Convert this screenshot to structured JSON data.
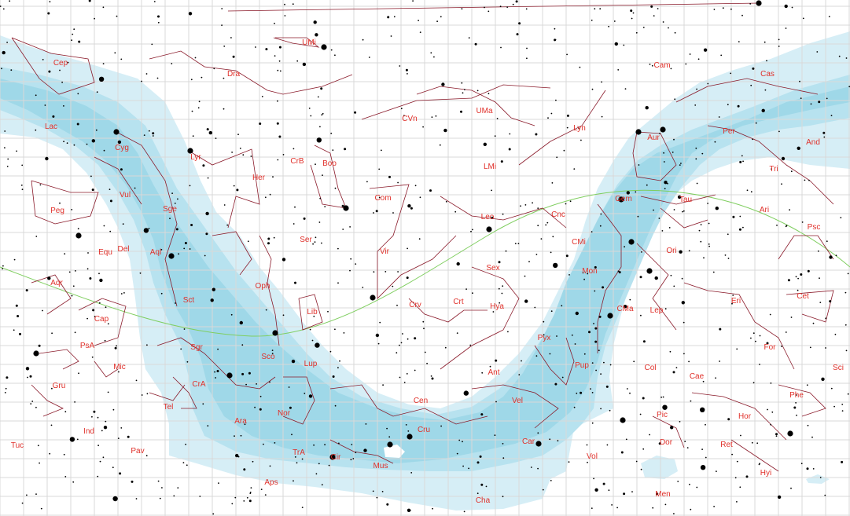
{
  "map": {
    "projection": "equirectangular sky chart",
    "colors": {
      "background": "#ffffff",
      "grid": "#d9d9d9",
      "milky_way_outer": "#d6eef6",
      "milky_way_mid": "#b7e2ef",
      "milky_way_inner": "#9fd8e8",
      "constellation_lines": "#8a1a2a",
      "labels": "#e0302a",
      "ecliptic": "#7fce5f",
      "stars": "#000000"
    },
    "constellations": [
      {
        "abbr": "UMi"
      },
      {
        "abbr": "Cep"
      },
      {
        "abbr": "Dra"
      },
      {
        "abbr": "Cam"
      },
      {
        "abbr": "Cas"
      },
      {
        "abbr": "CVn"
      },
      {
        "abbr": "UMa"
      },
      {
        "abbr": "Lac"
      },
      {
        "abbr": "Lyn"
      },
      {
        "abbr": "Per"
      },
      {
        "abbr": "Aur"
      },
      {
        "abbr": "And"
      },
      {
        "abbr": "Cyg"
      },
      {
        "abbr": "Lyr"
      },
      {
        "abbr": "CrB"
      },
      {
        "abbr": "Boo"
      },
      {
        "abbr": "LMi"
      },
      {
        "abbr": "Tri"
      },
      {
        "abbr": "Her"
      },
      {
        "abbr": "Vul"
      },
      {
        "abbr": "Peg"
      },
      {
        "abbr": "Com"
      },
      {
        "abbr": "Gem"
      },
      {
        "abbr": "Tau"
      },
      {
        "abbr": "Sge"
      },
      {
        "abbr": "Leo"
      },
      {
        "abbr": "Cnc"
      },
      {
        "abbr": "Ari"
      },
      {
        "abbr": "Ser"
      },
      {
        "abbr": "Psc"
      },
      {
        "abbr": "Equ"
      },
      {
        "abbr": "Del"
      },
      {
        "abbr": "Aql"
      },
      {
        "abbr": "CMi"
      },
      {
        "abbr": "Vir"
      },
      {
        "abbr": "Ori"
      },
      {
        "abbr": "Sex"
      },
      {
        "abbr": "Mon"
      },
      {
        "abbr": "Aqr"
      },
      {
        "abbr": "Oph"
      },
      {
        "abbr": "Sct"
      },
      {
        "abbr": "Crv"
      },
      {
        "abbr": "Crt"
      },
      {
        "abbr": "Hya"
      },
      {
        "abbr": "Eri"
      },
      {
        "abbr": "Cet"
      },
      {
        "abbr": "CMa"
      },
      {
        "abbr": "Lep"
      },
      {
        "abbr": "Cap"
      },
      {
        "abbr": "Lib"
      },
      {
        "abbr": "PsA"
      },
      {
        "abbr": "Sgr"
      },
      {
        "abbr": "Pyx"
      },
      {
        "abbr": "For"
      },
      {
        "abbr": "Sco"
      },
      {
        "abbr": "Mic"
      },
      {
        "abbr": "Lup"
      },
      {
        "abbr": "Pup"
      },
      {
        "abbr": "Col"
      },
      {
        "abbr": "Sci"
      },
      {
        "abbr": "Ant"
      },
      {
        "abbr": "Cae"
      },
      {
        "abbr": "Gru"
      },
      {
        "abbr": "CrA"
      },
      {
        "abbr": "Vel"
      },
      {
        "abbr": "Cen"
      },
      {
        "abbr": "Phe"
      },
      {
        "abbr": "Tel"
      },
      {
        "abbr": "Nor"
      },
      {
        "abbr": "Ind"
      },
      {
        "abbr": "Ara"
      },
      {
        "abbr": "Pic"
      },
      {
        "abbr": "Hor"
      },
      {
        "abbr": "Cru"
      },
      {
        "abbr": "Car"
      },
      {
        "abbr": "Tuc"
      },
      {
        "abbr": "TrA"
      },
      {
        "abbr": "Dor"
      },
      {
        "abbr": "Ret"
      },
      {
        "abbr": "Pav"
      },
      {
        "abbr": "Cir"
      },
      {
        "abbr": "Vol"
      },
      {
        "abbr": "Mus"
      },
      {
        "abbr": "Aps"
      },
      {
        "abbr": "Hyi"
      },
      {
        "abbr": "Men"
      },
      {
        "abbr": "Cha"
      }
    ]
  }
}
